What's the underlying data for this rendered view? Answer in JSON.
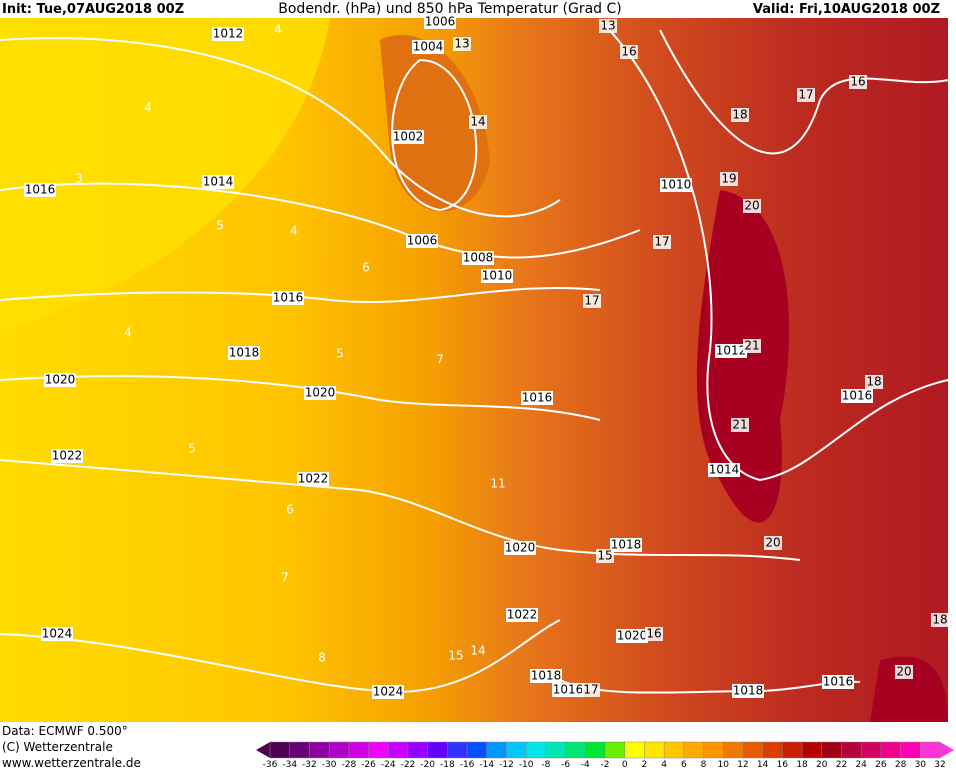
{
  "header": {
    "init": "Init: Tue,07AUG2018 00Z",
    "title": "Bodendr. (hPa) und 850 hPa Temperatur (Grad C)",
    "valid": "Valid: Fri,10AUG2018 00Z"
  },
  "footer": {
    "data": "Data: ECMWF   0.500°",
    "copyright": "(C) Wetterzentrale",
    "url": "www.wetterzentrale.de"
  },
  "isobar_labels": [
    1006,
    1004,
    1012,
    1002,
    1014,
    1016,
    1010,
    1006,
    1008,
    1010,
    1016,
    1018,
    1012,
    1020,
    1020,
    1016,
    1016,
    1022,
    1014,
    1022,
    1020,
    1018,
    1022,
    1020,
    1024,
    1018,
    1016,
    1024,
    1018,
    1016
  ],
  "temperature_labels": [
    13,
    16,
    16,
    17,
    18,
    19,
    20,
    17,
    17,
    21,
    18,
    21,
    20,
    15,
    16,
    17,
    18,
    20,
    14,
    13,
    4,
    4,
    3,
    5,
    4,
    6,
    4,
    5,
    7,
    5,
    11,
    6,
    7,
    8,
    15,
    14
  ],
  "colorbar": {
    "labels": [
      -36,
      -34,
      -32,
      -30,
      -28,
      -26,
      -24,
      -22,
      -20,
      -18,
      -16,
      -14,
      -12,
      -10,
      -8,
      -6,
      -4,
      -2,
      0,
      2,
      4,
      6,
      8,
      10,
      12,
      14,
      16,
      18,
      20,
      22,
      24,
      26,
      28,
      30,
      32
    ],
    "colors": [
      "#4b0050",
      "#6a0078",
      "#8c00a0",
      "#b000c8",
      "#d200e6",
      "#f000ff",
      "#c800ff",
      "#9600ff",
      "#6400ff",
      "#3232ff",
      "#0050ff",
      "#0096ff",
      "#00c8ff",
      "#00e6e6",
      "#00e6b4",
      "#00e678",
      "#00e632",
      "#64f000",
      "#ffff00",
      "#ffe600",
      "#ffc800",
      "#ffaa00",
      "#ff9600",
      "#f07800",
      "#e65a00",
      "#dc3c00",
      "#c81e00",
      "#b40000",
      "#a00014",
      "#b4003c",
      "#d20064",
      "#f0008c",
      "#ff00b4",
      "#ff32dc"
    ]
  }
}
